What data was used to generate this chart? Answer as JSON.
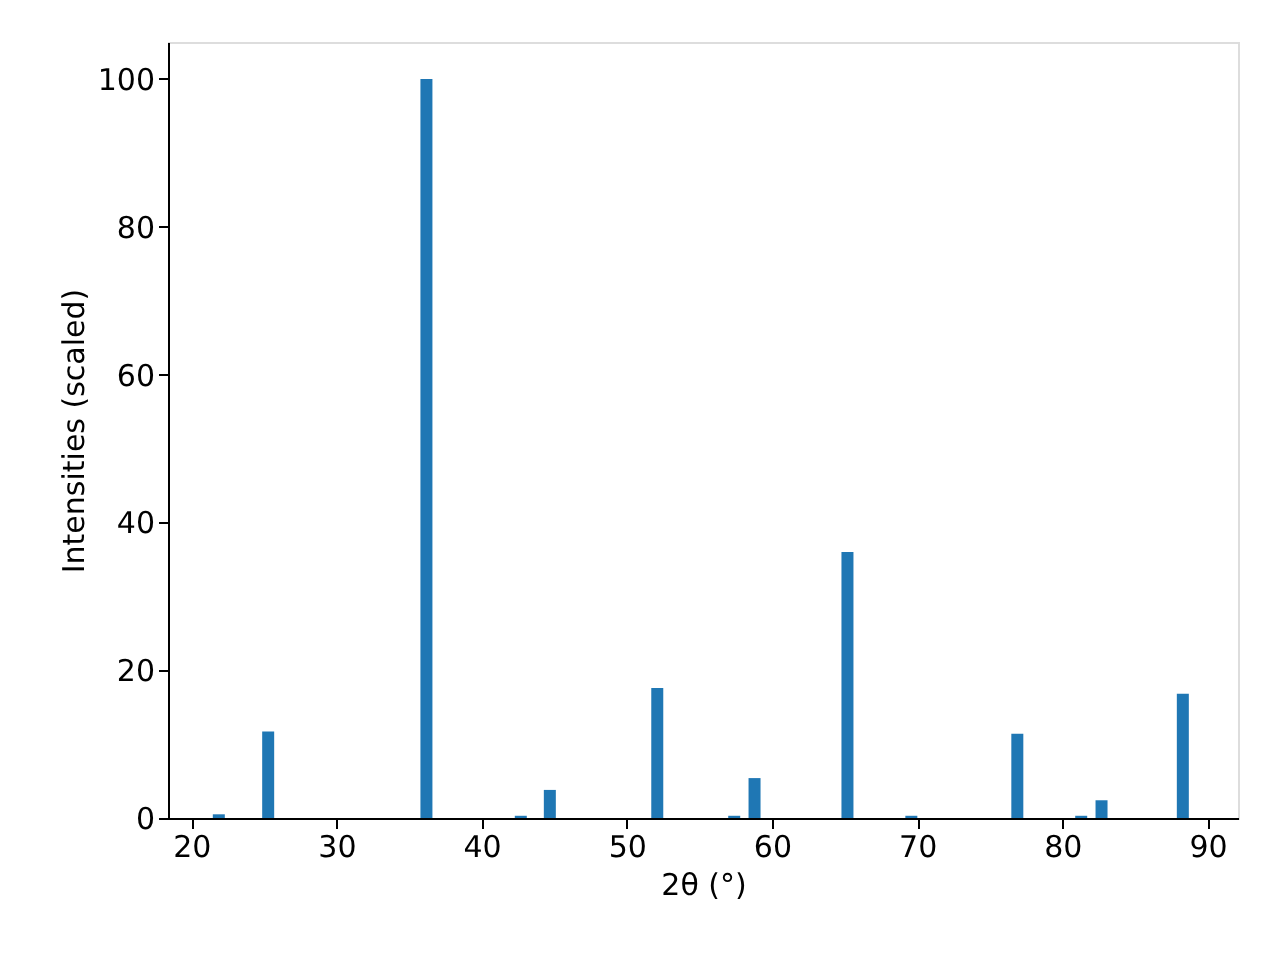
{
  "chart_data": {
    "type": "bar",
    "xlabel": "2θ (°)",
    "ylabel": "Intensities (scaled)",
    "x": [
      21.9,
      25.3,
      36.2,
      42.7,
      44.7,
      52.1,
      57.4,
      58.8,
      65.2,
      69.6,
      76.9,
      81.3,
      82.7,
      88.3
    ],
    "values": [
      0.5,
      11.7,
      100,
      0.3,
      3.8,
      17.6,
      0.3,
      5.4,
      36,
      0.3,
      11.4,
      0.3,
      2.4,
      16.8
    ],
    "color": "#1f77b4",
    "xlim": [
      18.4,
      92.1
    ],
    "xticks": [
      20,
      30,
      40,
      50,
      60,
      70,
      80,
      90
    ],
    "ylim": [
      0,
      105
    ],
    "yticks": [
      0,
      20,
      40,
      60,
      80,
      100
    ],
    "grid": false
  }
}
